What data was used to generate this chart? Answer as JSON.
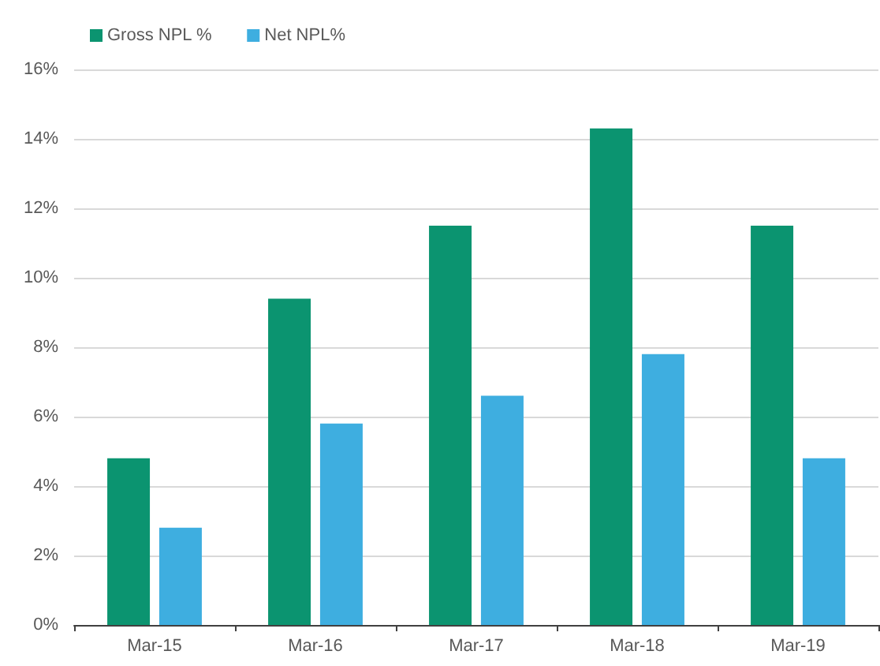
{
  "chart_data": {
    "type": "bar",
    "categories": [
      "Mar-15",
      "Mar-16",
      "Mar-17",
      "Mar-18",
      "Mar-19"
    ],
    "series": [
      {
        "name": "Gross NPL %",
        "color": "#0b9470",
        "values": [
          4.8,
          9.4,
          11.5,
          14.3,
          11.5
        ]
      },
      {
        "name": "Net NPL%",
        "color": "#3eaee0",
        "values": [
          2.8,
          5.8,
          6.6,
          7.8,
          4.8
        ]
      }
    ],
    "ylim": [
      0,
      16
    ],
    "yticks": [
      {
        "value": 0,
        "label": "0%"
      },
      {
        "value": 2,
        "label": "2%"
      },
      {
        "value": 4,
        "label": "4%"
      },
      {
        "value": 6,
        "label": "6%"
      },
      {
        "value": 8,
        "label": "8%"
      },
      {
        "value": 10,
        "label": "10%"
      },
      {
        "value": 12,
        "label": "12%"
      },
      {
        "value": 14,
        "label": "14%"
      },
      {
        "value": 16,
        "label": "16%"
      }
    ],
    "grid": "y",
    "legend": "top left"
  }
}
